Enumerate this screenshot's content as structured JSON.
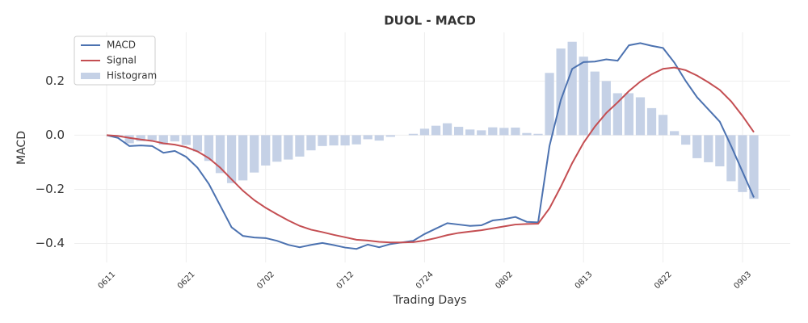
{
  "chart_data": {
    "type": "line",
    "title": "DUOL - MACD",
    "x_label": "Trading Days",
    "y_label": "MACD",
    "categories": [
      "0611",
      null,
      null,
      null,
      null,
      null,
      null,
      "0621",
      null,
      null,
      null,
      null,
      null,
      null,
      "0702",
      null,
      null,
      null,
      null,
      null,
      null,
      "0712",
      null,
      null,
      null,
      null,
      null,
      null,
      "0724",
      null,
      null,
      null,
      null,
      null,
      null,
      "0802",
      null,
      null,
      null,
      null,
      null,
      null,
      "0813",
      null,
      null,
      null,
      null,
      null,
      null,
      "0822",
      null,
      null,
      null,
      null,
      null,
      null,
      "0903",
      null
    ],
    "series": [
      {
        "name": "MACD",
        "type": "line",
        "color": "#4c72b0",
        "values": [
          0.0,
          -0.01,
          -0.04,
          -0.038,
          -0.04,
          -0.065,
          -0.058,
          -0.08,
          -0.12,
          -0.18,
          -0.26,
          -0.34,
          -0.372,
          -0.378,
          -0.38,
          -0.39,
          -0.405,
          -0.414,
          -0.405,
          -0.398,
          -0.406,
          -0.415,
          -0.42,
          -0.404,
          -0.414,
          -0.402,
          -0.396,
          -0.39,
          -0.365,
          -0.345,
          -0.325,
          -0.33,
          -0.335,
          -0.333,
          -0.315,
          -0.31,
          -0.302,
          -0.32,
          -0.322,
          -0.04,
          0.13,
          0.245,
          0.27,
          0.272,
          0.28,
          0.275,
          0.332,
          0.34,
          0.33,
          0.322,
          0.268,
          0.2,
          0.14,
          0.095,
          0.05,
          -0.04,
          -0.135,
          -0.23
        ]
      },
      {
        "name": "Signal",
        "type": "line",
        "color": "#c44e52",
        "values": [
          0.0,
          -0.003,
          -0.01,
          -0.016,
          -0.021,
          -0.03,
          -0.035,
          -0.044,
          -0.06,
          -0.085,
          -0.12,
          -0.163,
          -0.205,
          -0.24,
          -0.268,
          -0.292,
          -0.315,
          -0.335,
          -0.349,
          -0.358,
          -0.368,
          -0.377,
          -0.386,
          -0.389,
          -0.394,
          -0.396,
          -0.396,
          -0.395,
          -0.389,
          -0.38,
          -0.369,
          -0.361,
          -0.356,
          -0.351,
          -0.344,
          -0.337,
          -0.33,
          -0.328,
          -0.327,
          -0.27,
          -0.19,
          -0.103,
          -0.028,
          0.032,
          0.082,
          0.121,
          0.163,
          0.198,
          0.225,
          0.245,
          0.25,
          0.24,
          0.22,
          0.195,
          0.167,
          0.125,
          0.071,
          0.011
        ]
      },
      {
        "name": "Histogram",
        "type": "bar",
        "color": "#c5d1e6",
        "values": [
          0.0,
          -0.007,
          -0.03,
          -0.022,
          -0.019,
          -0.035,
          -0.023,
          -0.036,
          -0.06,
          -0.095,
          -0.14,
          -0.177,
          -0.167,
          -0.138,
          -0.112,
          -0.098,
          -0.09,
          -0.079,
          -0.056,
          -0.04,
          -0.038,
          -0.038,
          -0.034,
          -0.015,
          -0.02,
          -0.006,
          0.0,
          0.005,
          0.024,
          0.035,
          0.044,
          0.031,
          0.021,
          0.018,
          0.029,
          0.027,
          0.028,
          0.008,
          0.005,
          0.23,
          0.32,
          0.345,
          0.29,
          0.235,
          0.2,
          0.155,
          0.155,
          0.14,
          0.1,
          0.075,
          0.015,
          -0.035,
          -0.085,
          -0.1,
          -0.115,
          -0.17,
          -0.21,
          -0.235
        ]
      }
    ],
    "ylim": [
      -0.47,
      0.38
    ],
    "yticks": [
      {
        "value": -0.4,
        "label": "−0.4"
      },
      {
        "value": -0.2,
        "label": "−0.2"
      },
      {
        "value": 0,
        "label": "0.0"
      },
      0.2
    ],
    "grid": true,
    "legend": "upper left"
  }
}
